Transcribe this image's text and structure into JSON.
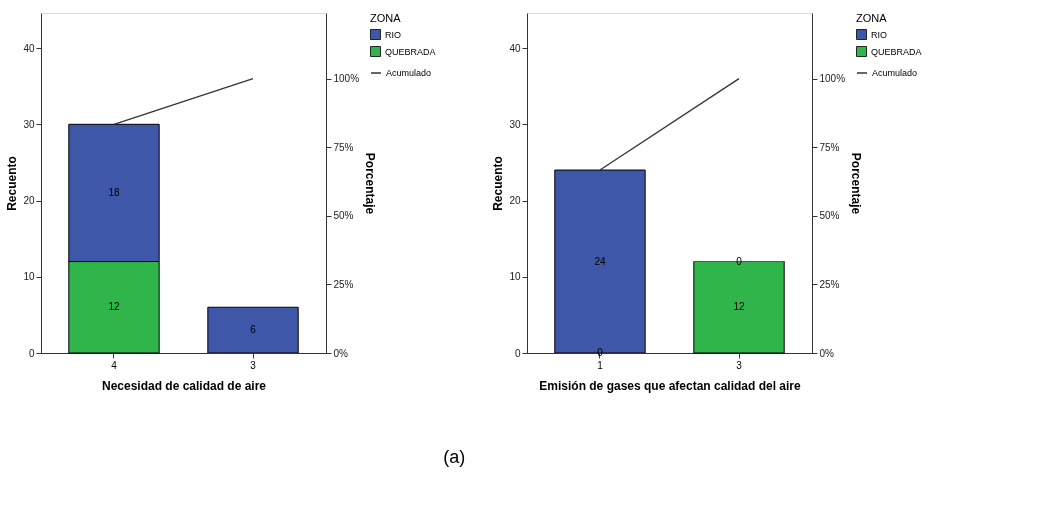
{
  "chart_data": [
    {
      "type": "bar",
      "stacked": true,
      "xlabel": "Necesidad de calidad de aire",
      "ylabel": "Recuento",
      "y2label": "Porcentaje",
      "legend_title": "ZONA",
      "legend": "right",
      "grid": false,
      "categories": [
        "4",
        "3"
      ],
      "series": [
        {
          "name": "QUEBRADA",
          "color": "#30b54a",
          "values": [
            12,
            0
          ],
          "value_labels": [
            "12",
            null
          ]
        },
        {
          "name": "RIO",
          "color": "#3f57a8",
          "values": [
            18,
            6
          ],
          "value_labels": [
            "18",
            "6"
          ]
        },
        {
          "name": "Acumulado",
          "type": "line",
          "axis": "y2",
          "color": "#333333",
          "values": [
            83.3,
            100
          ]
        }
      ],
      "ylim": [
        0,
        44.6
      ],
      "yticks": [
        0,
        10,
        20,
        30,
        40
      ],
      "y2lim": [
        0,
        123.9
      ],
      "y2ticks": [
        {
          "value": 0,
          "label": "0%"
        },
        {
          "value": 25,
          "label": "25%"
        },
        {
          "value": 50,
          "label": "50%"
        },
        {
          "value": 75,
          "label": "75%"
        },
        {
          "value": 100,
          "label": "100%"
        }
      ],
      "annotations": [
        "(a)"
      ]
    },
    {
      "type": "bar",
      "stacked": true,
      "xlabel": "Emisión de gases que afectan calidad del aire",
      "ylabel": "Recuento",
      "y2label": "Porcentaje",
      "legend_title": "ZONA",
      "legend": "right",
      "grid": false,
      "categories": [
        "1",
        "3"
      ],
      "series": [
        {
          "name": "QUEBRADA",
          "color": "#30b54a",
          "values": [
            0,
            12
          ],
          "value_labels": [
            "0",
            "12"
          ]
        },
        {
          "name": "RIO",
          "color": "#3f57a8",
          "values": [
            24,
            0
          ],
          "value_labels": [
            "24",
            "0"
          ]
        },
        {
          "name": "Acumulado",
          "type": "line",
          "axis": "y2",
          "color": "#333333",
          "values": [
            66.7,
            100
          ]
        }
      ],
      "ylim": [
        0,
        44.6
      ],
      "yticks": [
        0,
        10,
        20,
        30,
        40
      ],
      "y2lim": [
        0,
        123.9
      ],
      "y2ticks": [
        {
          "value": 0,
          "label": "0%"
        },
        {
          "value": 25,
          "label": "25%"
        },
        {
          "value": 50,
          "label": "50%"
        },
        {
          "value": 75,
          "label": "75%"
        },
        {
          "value": 100,
          "label": "100%"
        }
      ]
    }
  ]
}
